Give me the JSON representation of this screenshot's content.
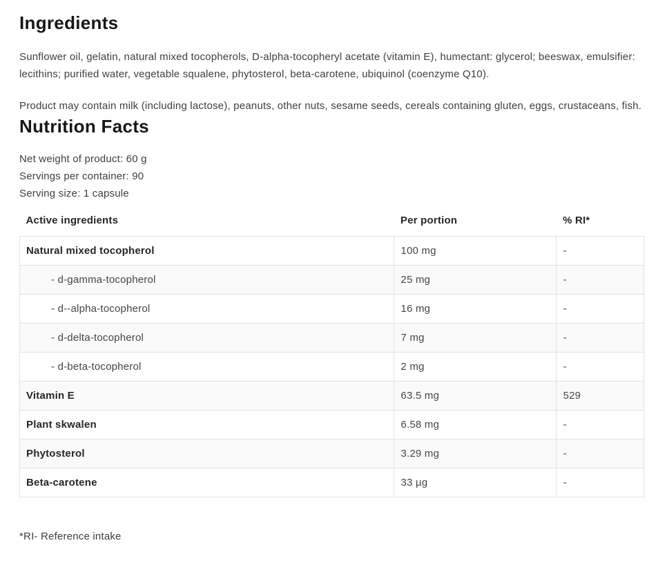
{
  "ingredients": {
    "title": "Ingredients",
    "paragraphs": [
      "Sunflower oil, gelatin, natural mixed tocopherols, D-alpha-tocopheryl acetate (vitamin E), humectant: glycerol; beeswax, emulsifier: lecithins; purified water, vegetable squalene, phytosterol, beta-carotene, ubiquinol (coenzyme Q10).",
      "Product may contain milk (including lactose), peanuts, other nuts, sesame seeds, cereals containing gluten, eggs, crustaceans, fish."
    ]
  },
  "nutrition": {
    "title": "Nutrition Facts",
    "serving_info": [
      "Net weight of product: 60 g",
      "Servings per container: 90",
      "Serving size: 1 capsule"
    ],
    "table": {
      "headers": [
        "Active ingredients",
        "Per portion",
        "% RI*"
      ],
      "rows": [
        {
          "name": "Natural mixed tocopherol",
          "per_portion": "100 mg",
          "ri": "-"
        },
        {
          "name": "- d-gamma-tocopherol",
          "per_portion": "25 mg",
          "ri": "-"
        },
        {
          "name": "- d--alpha-tocopherol",
          "per_portion": "16 mg",
          "ri": "-"
        },
        {
          "name": "- d-delta-tocopherol",
          "per_portion": "7 mg",
          "ri": "-"
        },
        {
          "name": "- d-beta-tocopherol",
          "per_portion": "2 mg",
          "ri": "-"
        },
        {
          "name": "Vitamin E",
          "per_portion": "63.5 mg",
          "ri": "529"
        },
        {
          "name": "Plant skwalen",
          "per_portion": "6.58 mg",
          "ri": "-"
        },
        {
          "name": "Phytosterol",
          "per_portion": "3.29 mg",
          "ri": "-"
        },
        {
          "name": "Beta-carotene",
          "per_portion": "33 µg",
          "ri": "-"
        }
      ]
    },
    "footnote": "*RI- Reference intake"
  },
  "colors": {
    "heading_text": "#171717",
    "body_text": "#3e3e3e",
    "table_border": "#e2e2e2",
    "alt_row_background": "#fafafa"
  }
}
